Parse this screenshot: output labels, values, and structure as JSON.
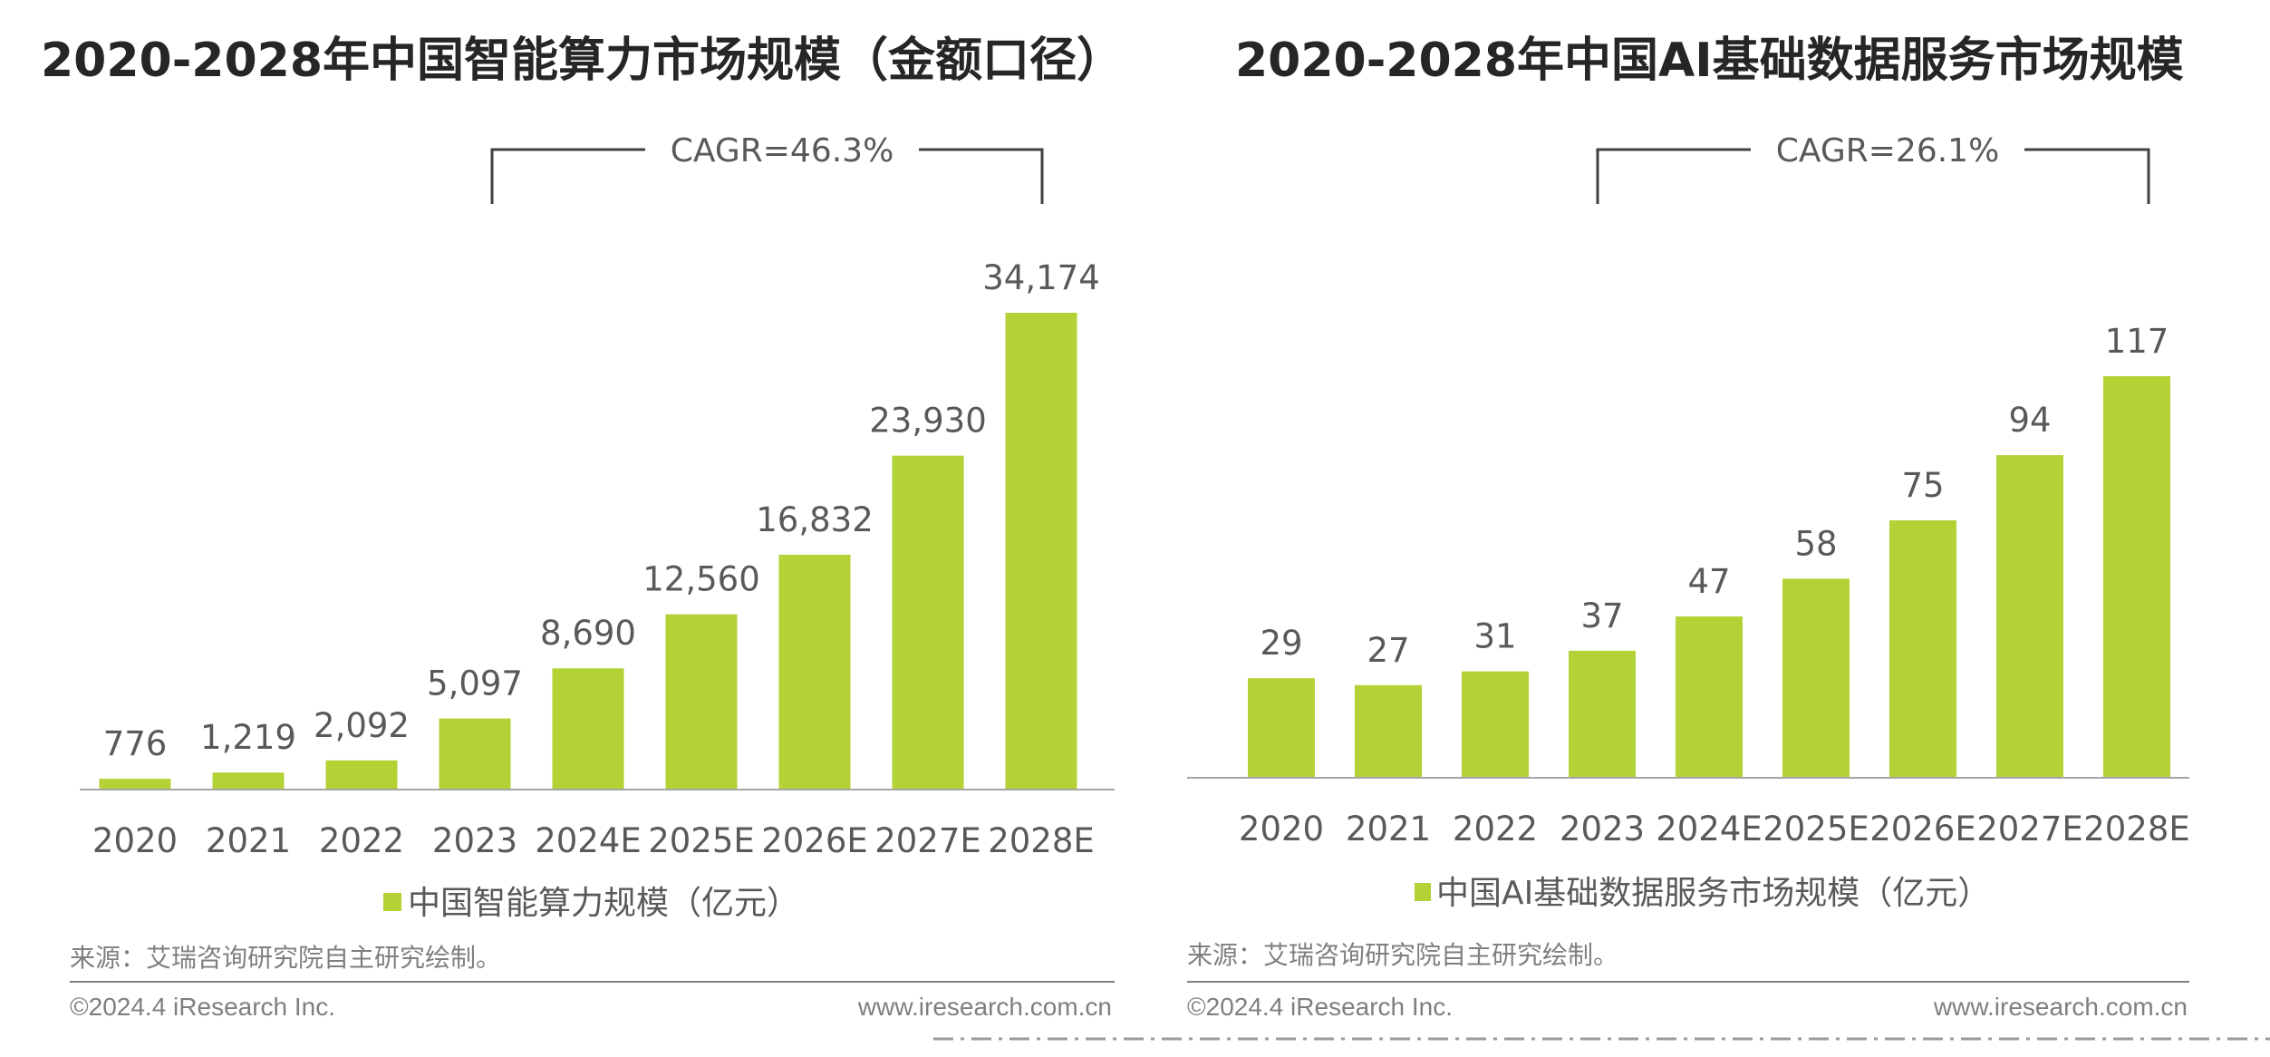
{
  "colors": {
    "bar": "#b2d235",
    "text": "#595959",
    "title": "#262626",
    "footer": "#7f7f7f"
  },
  "chart_data": [
    {
      "type": "bar",
      "title": "2020-2028年中国智能算力市场规模（金额口径）",
      "categories": [
        "2020",
        "2021",
        "2022",
        "2023",
        "2024E",
        "2025E",
        "2026E",
        "2027E",
        "2028E"
      ],
      "series": [
        {
          "name": "中国智能算力规模（亿元）",
          "values": [
            776,
            1219,
            2092,
            5097,
            8690,
            12560,
            16832,
            23930,
            34174
          ]
        }
      ],
      "value_labels": [
        "776",
        "1,219",
        "2,092",
        "5,097",
        "8,690",
        "12,560",
        "16,832",
        "23,930",
        "34,174"
      ],
      "annotation": "CAGR=46.3%",
      "annotation_span": [
        "2023",
        "2028E"
      ],
      "legend_position": "bottom",
      "grid": false,
      "ylim": [
        0,
        34174
      ],
      "source": "来源：艾瑞咨询研究院自主研究绘制。",
      "footer_left": "©2024.4 iResearch Inc.",
      "footer_right": "www.iresearch.com.cn"
    },
    {
      "type": "bar",
      "title": "2020-2028年中国AI基础数据服务市场规模",
      "categories": [
        "2020",
        "2021",
        "2022",
        "2023",
        "2024E",
        "2025E",
        "2026E",
        "2027E",
        "2028E"
      ],
      "series": [
        {
          "name": "中国AI基础数据服务市场规模（亿元）",
          "values": [
            29,
            27,
            31,
            37,
            47,
            58,
            75,
            94,
            117
          ]
        }
      ],
      "value_labels": [
        "29",
        "27",
        "31",
        "37",
        "47",
        "58",
        "75",
        "94",
        "117"
      ],
      "annotation": "CAGR=26.1%",
      "annotation_span": [
        "2023",
        "2028E"
      ],
      "legend_position": "bottom",
      "grid": false,
      "ylim": [
        0,
        117
      ],
      "source": "来源：艾瑞咨询研究院自主研究绘制。",
      "footer_left": "©2024.4 iResearch Inc.",
      "footer_right": "www.iresearch.com.cn"
    }
  ]
}
